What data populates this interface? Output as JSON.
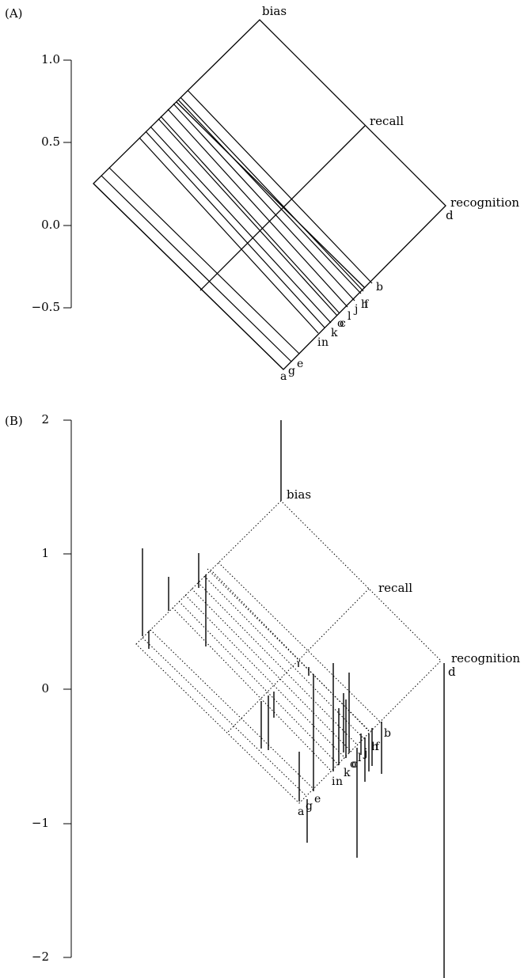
{
  "panels": [
    {
      "id": "A",
      "tag": "(A)",
      "y_ticks": [
        1.0,
        0.5,
        0.0,
        -0.5
      ],
      "y_tick_labels": [
        "1.0",
        "0.5",
        "0.0",
        "−0.5"
      ],
      "corner_labels": {
        "top": "bias",
        "right": "recall",
        "far": "recognition",
        "far_case": "d"
      },
      "case_labels": [
        "a",
        "g",
        "e",
        "i",
        "n",
        "k",
        "o",
        "c",
        "l",
        "j",
        "h",
        "f",
        "b"
      ]
    },
    {
      "id": "B",
      "tag": "(B)",
      "y_ticks": [
        2,
        1,
        0,
        -1,
        -2
      ],
      "y_tick_labels": [
        "2",
        "1",
        "0",
        "−1",
        "−2"
      ],
      "corner_labels": {
        "top": "bias",
        "right": "recall",
        "far": "recognition",
        "far_case": "d"
      },
      "case_labels": [
        "a",
        "g",
        "e",
        "i",
        "n",
        "k",
        "o",
        "c",
        "l",
        "j",
        "h",
        "f",
        "b"
      ]
    }
  ],
  "chart_data": [
    {
      "type": "scatter",
      "panel": "A",
      "title": "",
      "xlabel": "",
      "ylabel": "",
      "ylim": [
        -0.5,
        1.0
      ],
      "y_ticks": [
        1.0,
        0.5,
        0.0,
        -0.5
      ],
      "axes_3d": [
        "bias",
        "recall",
        "recognition"
      ],
      "grid": false,
      "cases": [
        "a",
        "g",
        "e",
        "i",
        "n",
        "k",
        "o",
        "c",
        "l",
        "j",
        "h",
        "f",
        "b",
        "d"
      ],
      "case_position_along_recognition": [
        0.0,
        0.04,
        0.09,
        0.2,
        0.23,
        0.26,
        0.3,
        0.3,
        0.33,
        0.38,
        0.42,
        0.43,
        0.47,
        1.0
      ]
    },
    {
      "type": "scatter",
      "panel": "B",
      "title": "",
      "xlabel": "",
      "ylabel": "",
      "ylim": [
        -2,
        2
      ],
      "y_ticks": [
        2,
        1,
        0,
        -1,
        -2
      ],
      "axes_3d": [
        "bias",
        "recall",
        "recognition"
      ],
      "grid": false,
      "cases": [
        "a",
        "g",
        "e",
        "i",
        "n",
        "k",
        "o",
        "c",
        "l",
        "j",
        "h",
        "f",
        "b",
        "d"
      ],
      "residual_spike_top": [
        1.05,
        0.85,
        1.02,
        0.85,
        0.38,
        0.3,
        0.4,
        0.32,
        -0.2,
        0.12,
        0.18,
        0.05,
        -0.1,
        -0.3,
        -0.35,
        -0.4,
        -0.42
      ],
      "residual_spike_bottom": [
        0.4,
        0.6,
        0.7,
        0.32,
        0.2,
        -0.12,
        -0.44,
        -0.5,
        -0.45,
        -0.78,
        -0.62,
        -0.56,
        -0.64,
        -1.25,
        -0.7,
        -0.55,
        -0.8
      ],
      "d_spike": [
        0.18,
        -2.13
      ]
    }
  ]
}
